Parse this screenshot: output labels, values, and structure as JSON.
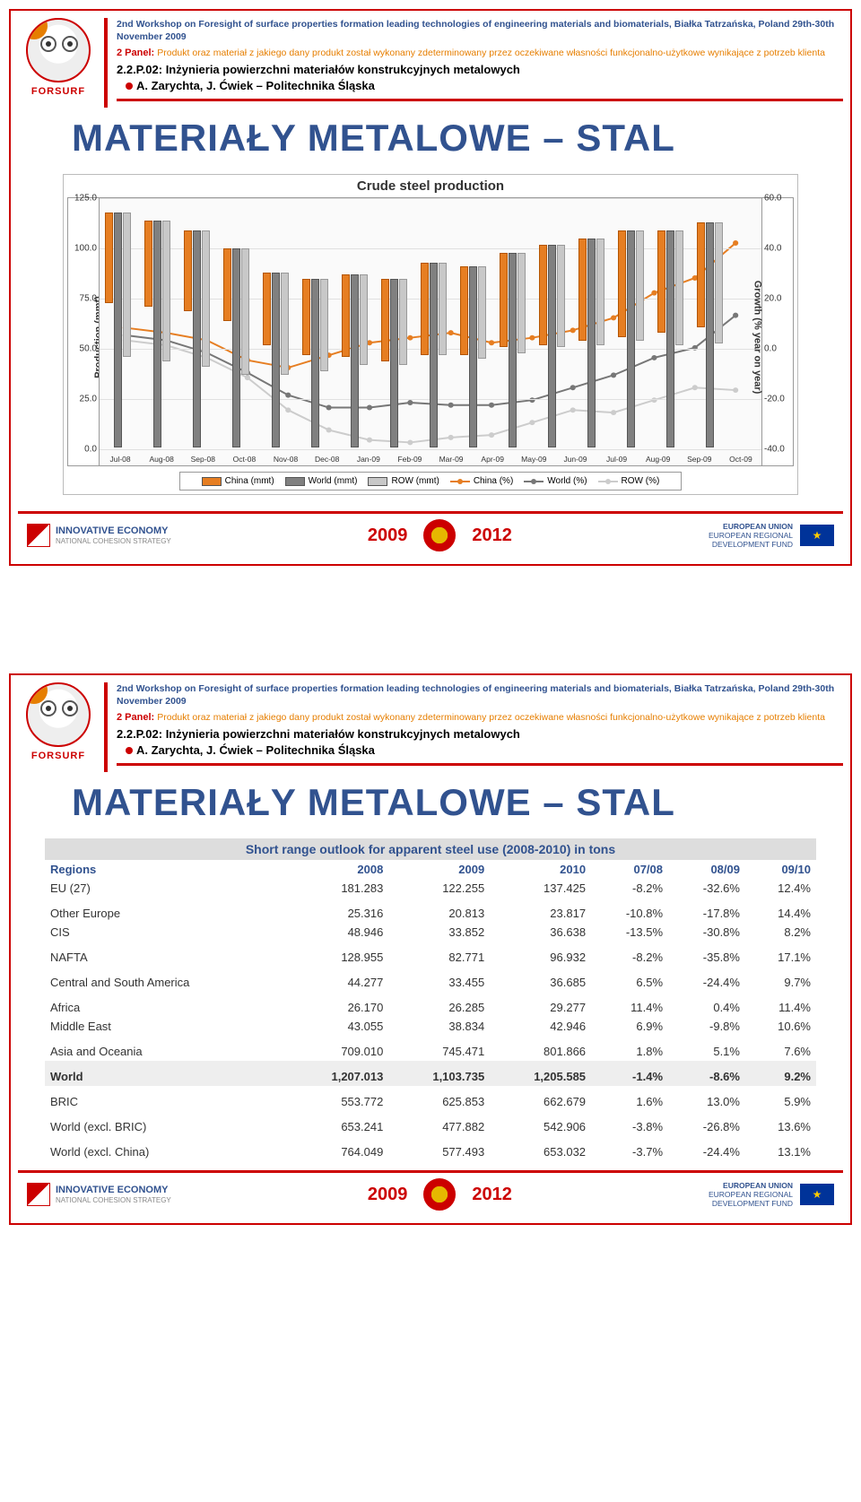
{
  "header": {
    "workshop": "2nd Workshop on Foresight of surface properties formation leading technologies of engineering materials and biomaterials,  Białka Tatrzańska, Poland 29th-30th November 2009",
    "workshop2": "2nd Workshop on Foresight of surface properties formation leading technologies of engineering materials and biomaterials,  Białka Tatrzańska, Poland 29th-30th November 2009",
    "panel_label": "2 Panel:",
    "panel_desc": "Produkt oraz materiał z jakiego dany produkt został wykonany zdeterminowany przez oczekiwane własności funkcjonalno-użytkowe wynikające z potrzeb klienta",
    "topic": "2.2.P.02: Inżynieria powierzchni materiałów konstrukcyjnych metalowych",
    "authors": "A. Zarychta, J. Ćwiek – Politechnika Śląska",
    "logo_text": "FORSURF"
  },
  "title_main": "MATERIAŁY METALOWE – STAL",
  "chart": {
    "title": "Crude steel production",
    "ylabel_left": "Production (mmt)",
    "ylabel_right": "Growth (% year on year)",
    "yticks_left": [
      "0.0",
      "25.0",
      "50.0",
      "75.0",
      "100.0",
      "125.0"
    ],
    "yticks_right": [
      "-40.0",
      "-20.0",
      "0.0",
      "20.0",
      "40.0",
      "60.0"
    ],
    "ymax_left": 125,
    "categories": [
      "Jul-08",
      "Aug-08",
      "Sep-08",
      "Oct-08",
      "Nov-08",
      "Dec-08",
      "Jan-09",
      "Feb-09",
      "Mar-09",
      "Apr-09",
      "May-09",
      "Jun-09",
      "Jul-09",
      "Aug-09",
      "Sep-09",
      "Oct-09"
    ],
    "series_bars": {
      "china": {
        "color": "#e67e22",
        "border": "#b35400",
        "values": [
          45,
          43,
          40,
          36,
          36,
          38,
          41,
          41,
          46,
          44,
          47,
          50,
          51,
          53,
          51,
          52
        ]
      },
      "world": {
        "color": "#808080",
        "border": "#555",
        "values": [
          117,
          113,
          108,
          99,
          87,
          84,
          86,
          84,
          92,
          90,
          97,
          101,
          104,
          108,
          108,
          112
        ]
      },
      "row": {
        "color": "#c8c8c8",
        "border": "#999",
        "values": [
          72,
          70,
          68,
          63,
          51,
          46,
          45,
          43,
          46,
          46,
          50,
          51,
          53,
          55,
          57,
          60
        ]
      }
    },
    "series_lines": {
      "china_pct": {
        "color": "#e67e22",
        "values": [
          8,
          6,
          3,
          -5,
          -8,
          -3,
          2,
          4,
          6,
          2,
          4,
          7,
          12,
          22,
          28,
          42
        ]
      },
      "world_pct": {
        "color": "#777",
        "values": [
          5,
          3,
          -2,
          -10,
          -19,
          -24,
          -24,
          -22,
          -23,
          -23,
          -21,
          -16,
          -11,
          -4,
          0,
          13
        ]
      },
      "row_pct": {
        "color": "#ccc",
        "values": [
          3,
          1,
          -4,
          -12,
          -25,
          -33,
          -37,
          -38,
          -36,
          -35,
          -30,
          -25,
          -26,
          -21,
          -16,
          -17
        ]
      }
    },
    "legend": {
      "china_bar": "China (mmt)",
      "world_bar": "World (mmt)",
      "row_bar": "ROW (mmt)",
      "china_line": "China (%)",
      "world_line": "World (%)",
      "row_line": "ROW (%)"
    }
  },
  "footer": {
    "left_title": "INNOVATIVE ECONOMY",
    "left_sub": "NATIONAL COHESION STRATEGY",
    "year1": "2009",
    "year2": "2012",
    "right1": "EUROPEAN UNION",
    "right2": "EUROPEAN REGIONAL",
    "right3": "DEVELOPMENT FUND"
  },
  "table": {
    "title": "Short range outlook for apparent steel use (2008-2010) in tons",
    "header_region": "Regions",
    "cols": [
      "2008",
      "2009",
      "2010",
      "07/08",
      "08/09",
      "09/10"
    ],
    "rows": [
      {
        "name": "EU (27)",
        "v": [
          "181.283",
          "122.255",
          "137.425",
          "-8.2%",
          "-32.6%",
          "12.4%"
        ],
        "spaced": false
      },
      {
        "name": "Other Europe",
        "v": [
          "25.316",
          "20.813",
          "23.817",
          "-10.8%",
          "-17.8%",
          "14.4%"
        ],
        "spaced": true
      },
      {
        "name": "CIS",
        "v": [
          "48.946",
          "33.852",
          "36.638",
          "-13.5%",
          "-30.8%",
          "8.2%"
        ],
        "spaced": false
      },
      {
        "name": "NAFTA",
        "v": [
          "128.955",
          "82.771",
          "96.932",
          "-8.2%",
          "-35.8%",
          "17.1%"
        ],
        "spaced": true
      },
      {
        "name": "Central and South America",
        "v": [
          "44.277",
          "33.455",
          "36.685",
          "6.5%",
          "-24.4%",
          "9.7%"
        ],
        "spaced": true
      },
      {
        "name": "Africa",
        "v": [
          "26.170",
          "26.285",
          "29.277",
          "11.4%",
          "0.4%",
          "11.4%"
        ],
        "spaced": true
      },
      {
        "name": "Middle East",
        "v": [
          "43.055",
          "38.834",
          "42.946",
          "6.9%",
          "-9.8%",
          "10.6%"
        ],
        "spaced": false
      },
      {
        "name": "Asia and Oceania",
        "v": [
          "709.010",
          "745.471",
          "801.866",
          "1.8%",
          "5.1%",
          "7.6%"
        ],
        "spaced": true
      }
    ],
    "world_row": {
      "name": "World",
      "v": [
        "1,207.013",
        "1,103.735",
        "1,205.585",
        "-1.4%",
        "-8.6%",
        "9.2%"
      ]
    },
    "extra_rows": [
      {
        "name": "BRIC",
        "v": [
          "553.772",
          "625.853",
          "662.679",
          "1.6%",
          "13.0%",
          "5.9%"
        ]
      },
      {
        "name": "World (excl. BRIC)",
        "v": [
          "653.241",
          "477.882",
          "542.906",
          "-3.8%",
          "-26.8%",
          "13.6%"
        ]
      },
      {
        "name": "World (excl. China)",
        "v": [
          "764.049",
          "577.493",
          "653.032",
          "-3.7%",
          "-24.4%",
          "13.1%"
        ]
      }
    ]
  }
}
